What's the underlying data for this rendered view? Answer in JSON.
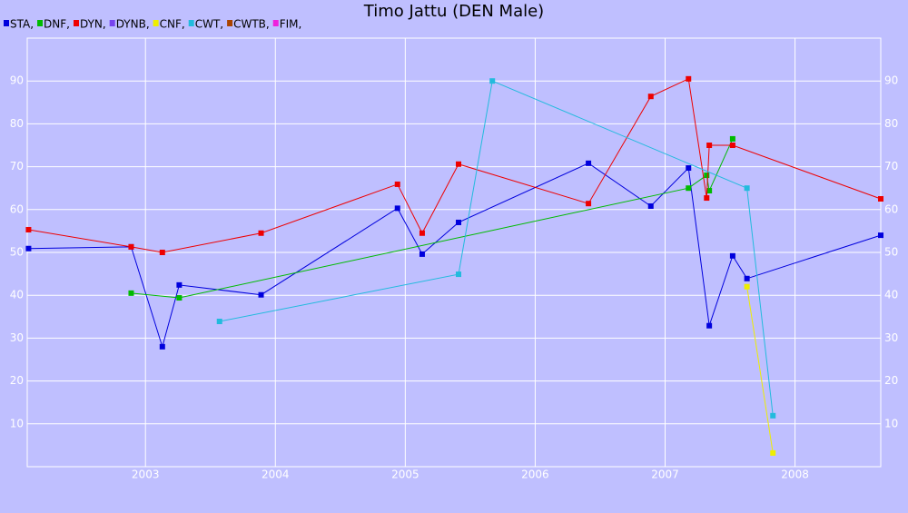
{
  "chart_data": {
    "type": "line",
    "title": "Timo Jattu (DEN Male)",
    "xlim": [
      2002.09,
      2008.66
    ],
    "xticks": [
      2003,
      2004,
      2005,
      2006,
      2007,
      2008
    ],
    "ylim": [
      0,
      100
    ],
    "yticks": [
      10,
      20,
      30,
      40,
      50,
      60,
      70,
      80,
      90
    ],
    "grid": true,
    "series": [
      {
        "name": "STA,",
        "color": "#0000dd",
        "x": [
          2002.1,
          2002.89,
          2003.13,
          2003.26,
          2003.89,
          2004.94,
          2005.13,
          2005.41,
          2006.41,
          2006.89,
          2007.18,
          2007.34,
          2007.52,
          2007.63,
          2008.66
        ],
        "values": [
          50.9,
          51.3,
          28.0,
          42.4,
          40.1,
          60.3,
          49.6,
          57.0,
          70.8,
          60.8,
          69.7,
          32.9,
          49.2,
          43.9,
          54.0
        ]
      },
      {
        "name": "DNF,",
        "color": "#00bb00",
        "x": [
          2002.89,
          2003.26,
          2007.18,
          2007.32,
          2007.34,
          2007.52
        ],
        "values": [
          40.5,
          39.4,
          65.0,
          68.0,
          64.4,
          76.5
        ]
      },
      {
        "name": "DYN,",
        "color": "#ee0000",
        "x": [
          2002.1,
          2002.89,
          2003.13,
          2003.89,
          2004.94,
          2005.13,
          2005.41,
          2006.41,
          2006.89,
          2007.18,
          2007.32,
          2007.34,
          2007.52,
          2008.66
        ],
        "values": [
          55.3,
          51.3,
          50.0,
          54.5,
          65.9,
          54.5,
          70.6,
          61.4,
          86.4,
          90.5,
          62.7,
          75.0,
          75.0,
          62.5
        ]
      },
      {
        "name": "DYNB,",
        "color": "#7744ee",
        "x": [],
        "values": []
      },
      {
        "name": "CNF,",
        "color": "#eeee00",
        "x": [
          2007.63,
          2007.83
        ],
        "values": [
          42.0,
          3.2
        ]
      },
      {
        "name": "CWT,",
        "color": "#22bbdd",
        "x": [
          2003.57,
          2005.41,
          2005.67,
          2007.63,
          2007.83
        ],
        "values": [
          33.9,
          44.9,
          90.0,
          65.0,
          11.9
        ]
      },
      {
        "name": "CWTB,",
        "color": "#aa4400",
        "x": [],
        "values": []
      },
      {
        "name": "FIM,",
        "color": "#ee22dd",
        "x": [],
        "values": []
      }
    ]
  }
}
